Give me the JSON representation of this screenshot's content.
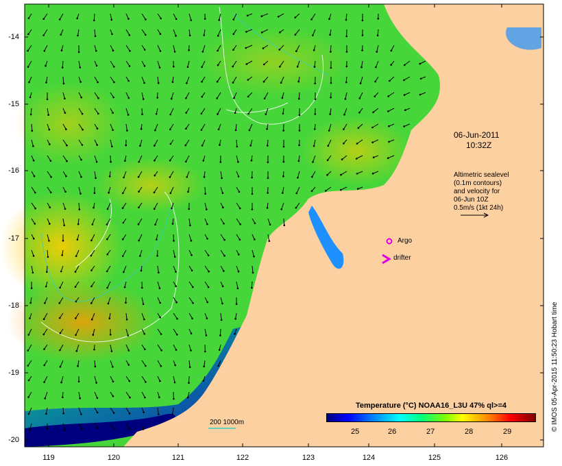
{
  "map": {
    "lat_labels": [
      "-14",
      "-15",
      "-16",
      "-17",
      "-18",
      "-19",
      "-20"
    ],
    "lon_labels": [
      "119",
      "120",
      "121",
      "122",
      "123",
      "124",
      "125",
      "126"
    ],
    "date_label": "06-Jun-2011",
    "time_label": "10:32Z",
    "altimetry_note": [
      "Altimetric sealevel",
      "(0.1m contours)",
      "and velocity for",
      "06-Jun 10Z",
      "0.5m/s (1kt 24h)"
    ],
    "argo_label": "Argo",
    "drifter_label": "drifter",
    "isobath_label": "200 1000m",
    "colorbar_title": "Temperature (°C) NOAA16_L3U 47% ql>=4",
    "colorbar_ticks": [
      "25",
      "26",
      "27",
      "28",
      "29"
    ],
    "credit": "© IMOS 05-Apr-2015 11:50:23 Hobart time",
    "colors": {
      "land": "#fdd0a2",
      "argo": "#e000e0",
      "drifter": "#e000e0",
      "isobath": "#33cccc"
    }
  }
}
